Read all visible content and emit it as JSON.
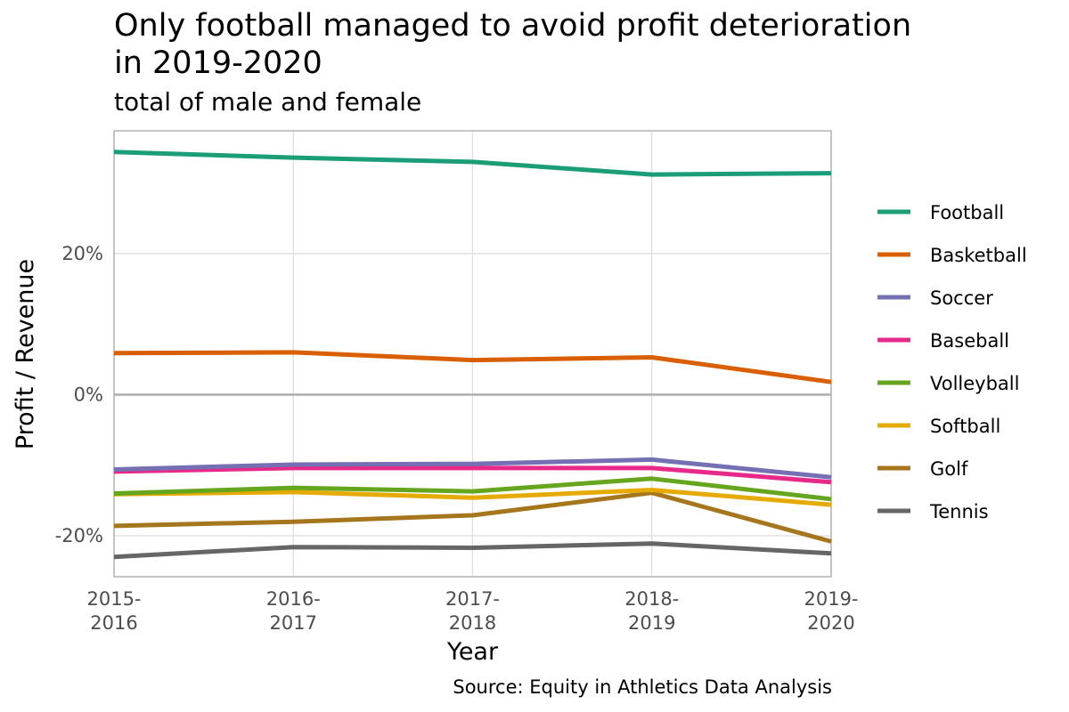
{
  "chart_data": {
    "type": "line",
    "title_line1": "Only football managed to avoid profit deterioration",
    "title_line2": "in 2019-2020",
    "subtitle": "total of male and female",
    "xlabel": "Year",
    "ylabel": "Profit / Revenue",
    "caption": "Source: Equity in Athletics Data Analysis",
    "categories": [
      [
        "2015-",
        "2016"
      ],
      [
        "2016-",
        "2017"
      ],
      [
        "2017-",
        "2018"
      ],
      [
        "2018-",
        "2019"
      ],
      [
        "2019-",
        "2020"
      ]
    ],
    "y_ticks": [
      {
        "value": -20,
        "label": "-20%"
      },
      {
        "value": 0,
        "label": "0%"
      },
      {
        "value": 20,
        "label": "20%"
      }
    ],
    "ylim": [
      -25.8,
      37.4
    ],
    "grid": true,
    "legend_position": "right",
    "series": [
      {
        "name": "Football",
        "color": "#1b9e77",
        "values": [
          34.4,
          33.6,
          33.0,
          31.2,
          31.4
        ]
      },
      {
        "name": "Basketball",
        "color": "#d95f02",
        "values": [
          5.9,
          6.0,
          4.9,
          5.3,
          1.8
        ]
      },
      {
        "name": "Soccer",
        "color": "#7570b3",
        "values": [
          -10.6,
          -9.9,
          -9.8,
          -9.2,
          -11.7
        ]
      },
      {
        "name": "Baseball",
        "color": "#e7298a",
        "values": [
          -10.9,
          -10.4,
          -10.4,
          -10.4,
          -12.4
        ]
      },
      {
        "name": "Volleyball",
        "color": "#66a61e",
        "values": [
          -14.0,
          -13.2,
          -13.7,
          -11.9,
          -14.8
        ]
      },
      {
        "name": "Softball",
        "color": "#e6ab02",
        "values": [
          -14.1,
          -13.8,
          -14.6,
          -13.5,
          -15.6
        ]
      },
      {
        "name": "Golf",
        "color": "#a6761d",
        "values": [
          -18.6,
          -18.0,
          -17.1,
          -13.9,
          -20.8
        ]
      },
      {
        "name": "Tennis",
        "color": "#666666",
        "values": [
          -23.0,
          -21.6,
          -21.7,
          -21.1,
          -22.5
        ]
      }
    ]
  }
}
